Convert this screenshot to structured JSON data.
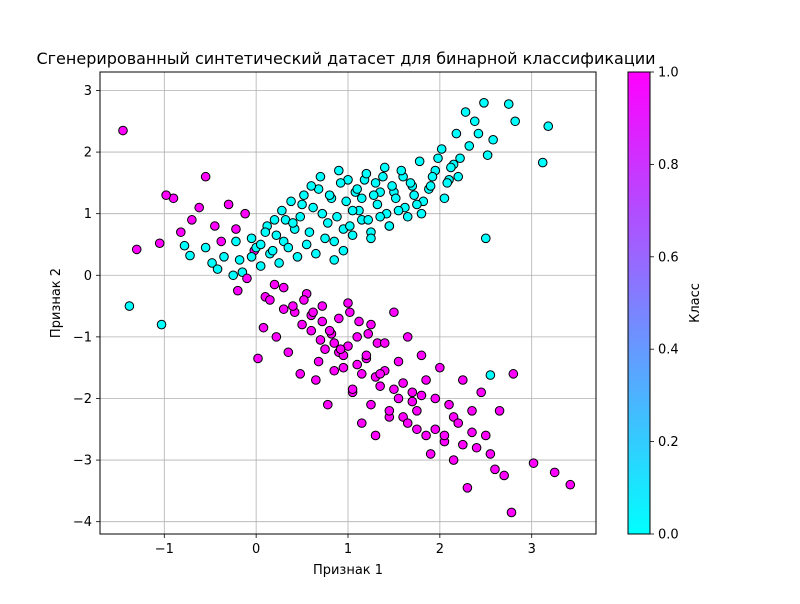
{
  "chart_data": {
    "type": "scatter",
    "title": "Сгенерированный синтетический датасет для бинарной классификации",
    "xlabel": "Признак 1",
    "ylabel": "Признак 2",
    "xlim": [
      -1.7,
      3.7
    ],
    "ylim": [
      -4.2,
      3.3
    ],
    "xticks": [
      -1,
      0,
      1,
      2,
      3
    ],
    "yticks": [
      -4,
      -3,
      -2,
      -1,
      0,
      1,
      2,
      3
    ],
    "grid": true,
    "marker_edge_color": "#000000",
    "colorbar": {
      "label": "Класс",
      "range": [
        0.0,
        1.0
      ],
      "ticks": [
        "0.0",
        "0.2",
        "0.4",
        "0.6",
        "0.8",
        "1.0"
      ],
      "colormap": "cool",
      "low_color": "#00ffff",
      "high_color": "#ff00ff"
    },
    "series": [
      {
        "class_value": 0,
        "color": "#00ffff",
        "x": [
          -1.38,
          -1.03,
          -0.78,
          -0.72,
          -0.55,
          -0.48,
          -0.42,
          -0.35,
          -0.22,
          -0.18,
          -0.05,
          0.05,
          0.12,
          0.18,
          0.22,
          0.28,
          0.32,
          0.38,
          0.42,
          0.48,
          0.52,
          0.58,
          0.62,
          0.68,
          0.72,
          0.78,
          0.82,
          0.88,
          0.92,
          0.98,
          1.02,
          1.08,
          1.12,
          1.18,
          1.22,
          1.28,
          1.32,
          1.38,
          1.42,
          1.48,
          1.52,
          1.58,
          1.62,
          1.68,
          1.72,
          1.78,
          1.82,
          1.88,
          1.92,
          1.98,
          2.02,
          2.08,
          2.12,
          2.18,
          2.22,
          2.28,
          2.32,
          2.38,
          2.42,
          2.48,
          2.52,
          2.58,
          2.75,
          2.82,
          3.12,
          3.18,
          0.45,
          0.55,
          0.65,
          0.75,
          0.85,
          0.95,
          1.05,
          1.15,
          1.25,
          1.35,
          1.45,
          1.55,
          0.25,
          0.35,
          0.15,
          0.05,
          -0.05,
          -0.15,
          -0.25,
          0.6,
          0.7,
          0.8,
          0.9,
          1.0,
          1.1,
          1.2,
          1.3,
          1.4,
          1.5,
          1.6,
          1.7,
          1.8,
          2.5,
          2.55,
          2.2,
          2.1,
          1.9,
          1.95,
          2.05,
          2.15,
          0.4,
          0.5,
          0.3,
          0.2,
          0.1,
          0.0,
          0.85,
          0.95,
          1.25,
          1.45,
          1.65,
          1.75,
          1.05,
          1.15,
          1.35
        ],
        "y": [
          -0.5,
          -0.8,
          0.48,
          0.32,
          0.45,
          0.2,
          0.1,
          0.3,
          0.55,
          0.25,
          0.6,
          0.5,
          0.8,
          0.4,
          0.65,
          1.05,
          0.9,
          1.2,
          0.75,
          0.95,
          1.3,
          0.7,
          1.1,
          1.4,
          1.0,
          0.85,
          1.25,
          0.95,
          1.5,
          1.2,
          0.8,
          1.35,
          1.05,
          1.55,
          0.9,
          1.3,
          1.15,
          1.6,
          1.0,
          1.45,
          1.25,
          1.7,
          1.1,
          1.5,
          1.3,
          1.85,
          1.2,
          1.4,
          1.6,
          1.9,
          2.05,
          1.5,
          1.75,
          2.3,
          1.9,
          2.65,
          2.1,
          2.5,
          2.3,
          2.8,
          1.95,
          2.2,
          2.78,
          2.5,
          1.83,
          2.42,
          0.3,
          0.5,
          0.35,
          0.6,
          0.55,
          0.75,
          0.65,
          0.9,
          0.7,
          0.95,
          0.8,
          1.05,
          0.2,
          0.45,
          0.35,
          0.15,
          0.3,
          0.05,
          0.0,
          1.45,
          1.6,
          1.3,
          1.7,
          1.55,
          1.4,
          1.65,
          1.5,
          1.75,
          1.35,
          1.6,
          1.45,
          1.0,
          0.6,
          -1.62,
          1.6,
          1.55,
          1.45,
          1.7,
          1.25,
          1.8,
          0.85,
          1.15,
          0.55,
          0.9,
          0.7,
          0.45,
          0.25,
          0.4,
          0.6,
          0.8,
          0.95,
          1.15,
          1.05,
          1.25,
          1.35
        ]
      },
      {
        "class_value": 1,
        "color": "#ff00ff",
        "x": [
          -1.45,
          -1.3,
          -1.05,
          -0.98,
          -0.9,
          -0.82,
          -0.7,
          -0.62,
          -0.55,
          -0.45,
          -0.38,
          -0.3,
          -0.22,
          -0.12,
          -0.02,
          0.02,
          0.08,
          0.15,
          0.22,
          0.3,
          0.35,
          0.42,
          0.48,
          0.55,
          0.6,
          0.68,
          0.72,
          0.78,
          0.85,
          0.9,
          0.95,
          1.0,
          1.05,
          1.1,
          1.15,
          1.2,
          1.25,
          1.3,
          1.35,
          1.4,
          1.45,
          1.5,
          1.55,
          1.6,
          1.65,
          1.7,
          1.75,
          1.8,
          1.85,
          1.9,
          1.95,
          2.0,
          2.05,
          2.1,
          2.15,
          2.2,
          2.25,
          2.3,
          2.35,
          2.4,
          2.45,
          2.5,
          2.55,
          2.6,
          2.65,
          2.7,
          2.78,
          2.8,
          3.02,
          3.25,
          3.42,
          0.4,
          0.5,
          0.6,
          0.7,
          0.8,
          0.9,
          1.0,
          1.1,
          1.2,
          1.3,
          1.4,
          1.5,
          1.6,
          1.7,
          1.8,
          0.2,
          0.3,
          0.1,
          -0.1,
          -0.2,
          0.65,
          0.75,
          0.85,
          0.95,
          1.05,
          1.15,
          1.25,
          1.35,
          1.45,
          1.55,
          1.65,
          1.75,
          1.85,
          1.95,
          2.05,
          2.15,
          2.25,
          2.35,
          1.02,
          1.12,
          1.22,
          1.32,
          0.52,
          0.62,
          0.72,
          0.82,
          0.92
        ],
        "y": [
          2.35,
          0.42,
          0.52,
          1.3,
          1.25,
          0.7,
          0.9,
          1.1,
          1.6,
          0.8,
          0.55,
          1.15,
          0.75,
          1.0,
          0.4,
          -1.35,
          -0.85,
          -0.4,
          -1.0,
          -0.2,
          -1.25,
          -0.6,
          -1.6,
          -0.3,
          -0.9,
          -1.4,
          -0.5,
          -2.1,
          -1.1,
          -0.7,
          -1.5,
          -0.45,
          -1.85,
          -1.0,
          -2.4,
          -1.3,
          -0.8,
          -2.6,
          -1.6,
          -1.1,
          -2.2,
          -0.6,
          -1.4,
          -2.3,
          -1.0,
          -1.9,
          -2.5,
          -1.3,
          -1.7,
          -2.9,
          -2.0,
          -1.5,
          -2.6,
          -2.1,
          -3.0,
          -2.4,
          -1.7,
          -3.45,
          -2.2,
          -2.8,
          -1.9,
          -2.6,
          -2.9,
          -3.15,
          -2.2,
          -3.25,
          -3.85,
          -1.6,
          -3.05,
          -3.2,
          -3.4,
          -0.5,
          -0.8,
          -0.65,
          -1.05,
          -0.9,
          -1.25,
          -1.15,
          -1.45,
          -1.35,
          -1.65,
          -1.55,
          -1.85,
          -1.75,
          -2.05,
          -1.95,
          -0.15,
          -0.55,
          -0.35,
          -0.05,
          -0.25,
          -1.7,
          -1.2,
          -1.55,
          -1.3,
          -1.9,
          -1.6,
          -2.1,
          -1.8,
          -2.3,
          -2.0,
          -2.4,
          -2.2,
          -2.6,
          -2.5,
          -2.7,
          -2.3,
          -2.75,
          -2.55,
          -0.6,
          -0.75,
          -0.95,
          -1.1,
          -0.4,
          -0.6,
          -0.75,
          -0.95,
          -1.2
        ]
      }
    ]
  }
}
